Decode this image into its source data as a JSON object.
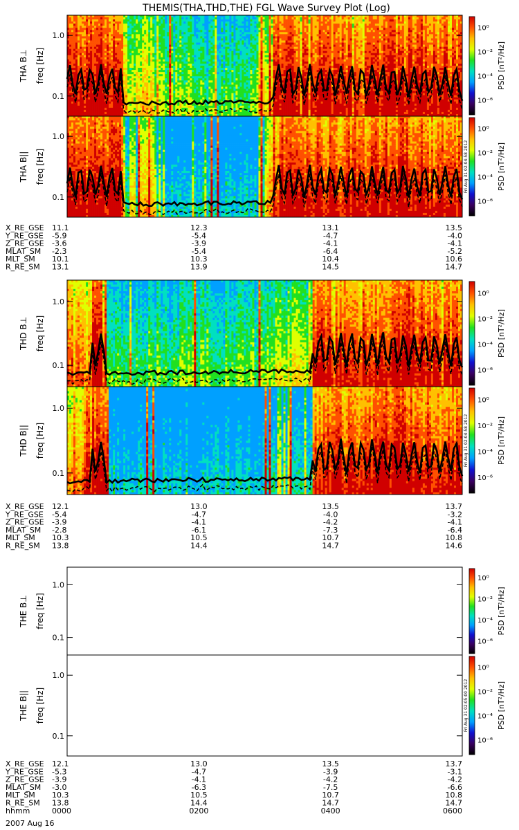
{
  "title": "THEMIS(THA,THD,THE) FGL Wave Survey Plot (Log)",
  "freq_unit_label": "freq [Hz]",
  "psd_label": "PSD [nT²/Hz]",
  "freq_ticks": [
    "1.0",
    "0.1"
  ],
  "psd_ticks": [
    "10⁰",
    "10⁻²",
    "10⁻⁴",
    "10⁻⁶"
  ],
  "stamps": [
    "Fri Aug 31 02:04:58 2012",
    "Fri Aug 31 02:04:58 2012",
    "Fri Aug 31 02:05:00 2012"
  ],
  "colors": {
    "colorbar": [
      "#000000",
      "#3a0060",
      "#1010d0",
      "#00a0ff",
      "#00e0c0",
      "#20e020",
      "#e0ff00",
      "#ffc000",
      "#ff5000",
      "#d00000"
    ],
    "trace": "#000000"
  },
  "chart_data": [
    {
      "probe": "THA",
      "type": "heatmap",
      "panels": [
        {
          "name": "THA B⊥",
          "spectrogram": "filled",
          "style": "a"
        },
        {
          "name": "THA B||",
          "spectrogram": "filled",
          "style": "a"
        }
      ]
    },
    {
      "probe": "THD",
      "type": "heatmap",
      "panels": [
        {
          "name": "THD B⊥",
          "spectrogram": "filled",
          "style": "d"
        },
        {
          "name": "THD B||",
          "spectrogram": "filled",
          "style": "d"
        }
      ]
    },
    {
      "probe": "THE",
      "type": "heatmap",
      "panels": [
        {
          "name": "THE B⊥",
          "spectrogram": "empty"
        },
        {
          "name": "THE B||",
          "spectrogram": "empty"
        }
      ]
    }
  ],
  "ephemeris": [
    {
      "rows": [
        {
          "label": "X_RE_GSE",
          "values": [
            "11.1",
            "12.3",
            "13.1",
            "13.5"
          ]
        },
        {
          "label": "Y_RE_GSE",
          "values": [
            "-5.9",
            "-5.4",
            "-4.7",
            "-4.0"
          ]
        },
        {
          "label": "Z_RE_GSE",
          "values": [
            "-3.6",
            "-3.9",
            "-4.1",
            "-4.1"
          ]
        },
        {
          "label": "MLAT_SM",
          "values": [
            "-2.3",
            "-5.4",
            "-6.4",
            "-5.2"
          ]
        },
        {
          "label": "MLT_SM",
          "values": [
            "10.1",
            "10.3",
            "10.4",
            "10.6"
          ]
        },
        {
          "label": "R_RE_SM",
          "values": [
            "13.1",
            "13.9",
            "14.5",
            "14.7"
          ]
        }
      ]
    },
    {
      "rows": [
        {
          "label": "X_RE_GSE",
          "values": [
            "12.1",
            "13.0",
            "13.5",
            "13.7"
          ]
        },
        {
          "label": "Y_RE_GSE",
          "values": [
            "-5.4",
            "-4.7",
            "-4.0",
            "-3.2"
          ]
        },
        {
          "label": "Z_RE_GSE",
          "values": [
            "-3.9",
            "-4.1",
            "-4.2",
            "-4.1"
          ]
        },
        {
          "label": "MLAT_SM",
          "values": [
            "-2.8",
            "-6.1",
            "-7.3",
            "-6.4"
          ]
        },
        {
          "label": "MLT_SM",
          "values": [
            "10.3",
            "10.5",
            "10.7",
            "10.8"
          ]
        },
        {
          "label": "R_RE_SM",
          "values": [
            "13.8",
            "14.4",
            "14.7",
            "14.6"
          ]
        }
      ]
    },
    {
      "rows": [
        {
          "label": "X_RE_GSE",
          "values": [
            "12.1",
            "13.0",
            "13.5",
            "13.7"
          ]
        },
        {
          "label": "Y_RE_GSE",
          "values": [
            "-5.3",
            "-4.7",
            "-3.9",
            "-3.1"
          ]
        },
        {
          "label": "Z_RE_GSE",
          "values": [
            "-3.9",
            "-4.1",
            "-4.2",
            "-4.2"
          ]
        },
        {
          "label": "MLAT_SM",
          "values": [
            "-3.0",
            "-6.3",
            "-7.5",
            "-6.6"
          ]
        },
        {
          "label": "MLT_SM",
          "values": [
            "10.3",
            "10.5",
            "10.7",
            "10.8"
          ]
        },
        {
          "label": "R_RE_SM",
          "values": [
            "13.8",
            "14.4",
            "14.7",
            "14.7"
          ]
        },
        {
          "label": "hhmm",
          "values": [
            "0000",
            "0200",
            "0400",
            "0600"
          ]
        }
      ]
    }
  ],
  "date_label": "2007 Aug 16"
}
